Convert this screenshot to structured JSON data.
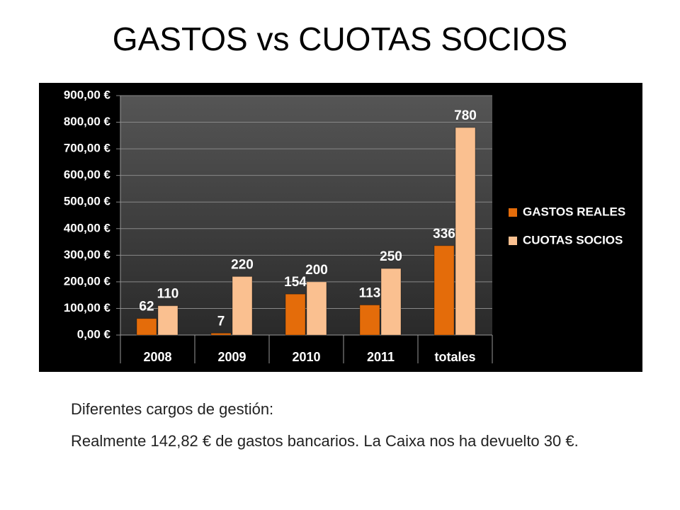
{
  "title": "GASTOS vs CUOTAS SOCIOS",
  "chart_data": {
    "type": "bar",
    "categories": [
      "2008",
      "2009",
      "2010",
      "2011",
      "totales"
    ],
    "series": [
      {
        "name": "GASTOS REALES",
        "color": "#e46c0a",
        "values": [
          62,
          7,
          154,
          113,
          336
        ]
      },
      {
        "name": "CUOTAS SOCIOS",
        "color": "#fac090",
        "values": [
          110,
          220,
          200,
          250,
          780
        ]
      }
    ],
    "ylim": [
      0,
      900
    ],
    "yticks": [
      {
        "value": 0,
        "label": "0,00 €"
      },
      {
        "value": 100,
        "label": "100,00 €"
      },
      {
        "value": 200,
        "label": "200,00 €"
      },
      {
        "value": 300,
        "label": "300,00 €"
      },
      {
        "value": 400,
        "label": "400,00 €"
      },
      {
        "value": 500,
        "label": "500,00 €"
      },
      {
        "value": 600,
        "label": "600,00 €"
      },
      {
        "value": 700,
        "label": "700,00 €"
      },
      {
        "value": 800,
        "label": "800,00 €"
      },
      {
        "value": 900,
        "label": "900,00 €"
      }
    ],
    "grid": true,
    "legend": "right"
  },
  "body": {
    "lines": [
      "Diferentes cargos de gestión:",
      "Realmente 142,82 € de gastos bancarios. La Caixa nos ha devuelto 30 €."
    ]
  }
}
